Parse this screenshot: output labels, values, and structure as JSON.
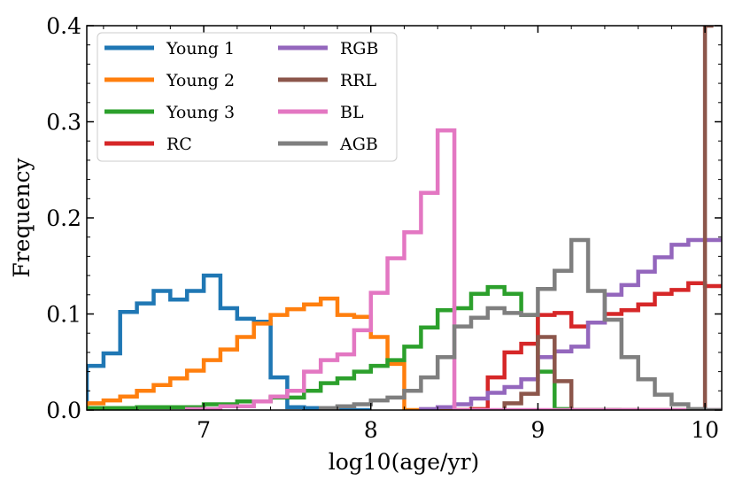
{
  "chart_data": {
    "type": "line",
    "title": "",
    "xlabel": "log10(age/yr)",
    "ylabel": "Frequency",
    "xlim": [
      6.3,
      10.1
    ],
    "ylim": [
      0.0,
      0.4
    ],
    "xticks": [
      7,
      8,
      9,
      10
    ],
    "xtick_labels": [
      "7",
      "8",
      "9",
      "10"
    ],
    "yticks": [
      0.0,
      0.1,
      0.2,
      0.3,
      0.4
    ],
    "ytick_labels": [
      "0.0",
      "0.1",
      "0.2",
      "0.3",
      "0.4"
    ],
    "grid": false,
    "legend_position": "top-left",
    "series": [
      {
        "name": "Young 1",
        "color": "#1f77b4",
        "edges": [
          6.3,
          6.4,
          6.5,
          6.6,
          6.7,
          6.8,
          6.9,
          7.0,
          7.1,
          7.2,
          7.3,
          7.4,
          7.5,
          7.6,
          7.7,
          7.8,
          7.9,
          8.0
        ],
        "values": [
          0.046,
          0.059,
          0.102,
          0.111,
          0.124,
          0.115,
          0.124,
          0.14,
          0.106,
          0.095,
          0.092,
          0.034,
          0.003,
          0.002,
          0.001,
          0.001,
          0.0
        ]
      },
      {
        "name": "Young 2",
        "color": "#ff7f0e",
        "edges": [
          6.3,
          6.4,
          6.5,
          6.6,
          6.7,
          6.8,
          6.9,
          7.0,
          7.1,
          7.2,
          7.3,
          7.4,
          7.5,
          7.6,
          7.7,
          7.8,
          7.9,
          8.0,
          8.1,
          8.2,
          8.3,
          8.4,
          8.5,
          8.6
        ],
        "values": [
          0.007,
          0.01,
          0.014,
          0.02,
          0.026,
          0.033,
          0.041,
          0.052,
          0.063,
          0.076,
          0.09,
          0.099,
          0.105,
          0.11,
          0.116,
          0.099,
          0.097,
          0.076,
          0.048,
          0.0,
          0.0,
          0.0,
          0.0
        ]
      },
      {
        "name": "Young 3",
        "color": "#2ca02c",
        "edges": [
          6.3,
          6.6,
          7.0,
          7.2,
          7.4,
          7.6,
          7.7,
          7.8,
          7.9,
          8.0,
          8.1,
          8.2,
          8.3,
          8.4,
          8.5,
          8.6,
          8.7,
          8.8,
          8.9,
          9.0,
          9.1,
          9.2,
          9.3,
          9.5
        ],
        "values": [
          0.002,
          0.003,
          0.006,
          0.009,
          0.013,
          0.02,
          0.028,
          0.033,
          0.04,
          0.046,
          0.052,
          0.066,
          0.086,
          0.104,
          0.106,
          0.121,
          0.128,
          0.121,
          0.099,
          0.04,
          0.001,
          0.0,
          0.0
        ]
      },
      {
        "name": "RC",
        "color": "#d62728",
        "edges": [
          8.5,
          8.6,
          8.7,
          8.8,
          8.9,
          9.0,
          9.1,
          9.2,
          9.3,
          9.4,
          9.5,
          9.6,
          9.7,
          9.8,
          9.9,
          10.0,
          10.1
        ],
        "values": [
          0.0,
          0.001,
          0.034,
          0.06,
          0.069,
          0.099,
          0.101,
          0.087,
          0.091,
          0.1,
          0.104,
          0.11,
          0.121,
          0.125,
          0.132,
          0.129
        ]
      },
      {
        "name": "RGB",
        "color": "#9467bd",
        "edges": [
          8.3,
          8.4,
          8.5,
          8.6,
          8.7,
          8.8,
          8.9,
          9.0,
          9.1,
          9.2,
          9.3,
          9.4,
          9.5,
          9.6,
          9.7,
          9.8,
          9.9,
          10.0,
          10.1
        ],
        "values": [
          0.001,
          0.003,
          0.006,
          0.012,
          0.018,
          0.024,
          0.032,
          0.055,
          0.061,
          0.066,
          0.091,
          0.12,
          0.13,
          0.144,
          0.159,
          0.172,
          0.177,
          0.177
        ]
      },
      {
        "name": "RRL",
        "color": "#8c564b",
        "edges": [
          8.8,
          8.9,
          9.0,
          9.1,
          9.2,
          9.95,
          10.0,
          10.05
        ],
        "values": [
          0.007,
          0.017,
          0.076,
          0.03,
          0.0,
          0.0,
          0.4
        ]
      },
      {
        "name": "BL",
        "color": "#e377c2",
        "edges": [
          6.9,
          7.1,
          7.3,
          7.4,
          7.5,
          7.6,
          7.7,
          7.8,
          7.9,
          8.0,
          8.1,
          8.2,
          8.3,
          8.4,
          8.5,
          8.6,
          9.0,
          10.1
        ],
        "values": [
          0.001,
          0.004,
          0.009,
          0.014,
          0.02,
          0.04,
          0.052,
          0.058,
          0.083,
          0.122,
          0.158,
          0.185,
          0.226,
          0.291,
          0.0,
          0.0,
          0.0
        ]
      },
      {
        "name": "AGB",
        "color": "#7f7f7f",
        "edges": [
          7.7,
          7.8,
          7.9,
          8.0,
          8.1,
          8.2,
          8.3,
          8.4,
          8.5,
          8.6,
          8.7,
          8.8,
          8.9,
          9.0,
          9.1,
          9.2,
          9.3,
          9.4,
          9.5,
          9.6,
          9.7,
          9.8,
          9.9,
          10.0,
          10.1
        ],
        "values": [
          0.002,
          0.004,
          0.006,
          0.01,
          0.013,
          0.02,
          0.034,
          0.055,
          0.087,
          0.096,
          0.106,
          0.101,
          0.099,
          0.126,
          0.145,
          0.177,
          0.124,
          0.094,
          0.055,
          0.032,
          0.016,
          0.006,
          0.001,
          0.0
        ]
      }
    ]
  }
}
